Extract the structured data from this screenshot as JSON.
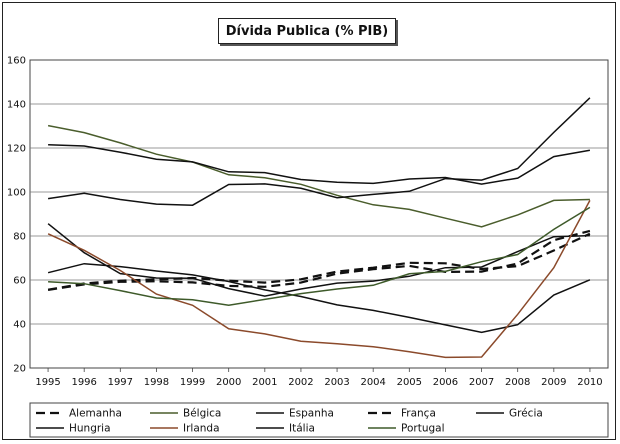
{
  "chart_data": {
    "type": "line",
    "title": "Dívida Publica (% PIB)",
    "xlabel": "",
    "ylabel": "",
    "x": [
      "1995",
      "1996",
      "1997",
      "1998",
      "1999",
      "2000",
      "2001",
      "2002",
      "2003",
      "2004",
      "2005",
      "2006",
      "2007",
      "2008",
      "2009",
      "2010"
    ],
    "ylim": [
      20,
      160
    ],
    "yticks": [
      20,
      40,
      60,
      80,
      100,
      120,
      140,
      160
    ],
    "grid": true,
    "legend_position": "bottom",
    "series": [
      {
        "name": "Alemanha",
        "color": "#111111",
        "dash": "dashed",
        "values": [
          55.6,
          58.4,
          59.7,
          60.3,
          60.9,
          59.7,
          58.8,
          60.3,
          63.8,
          65.6,
          67.8,
          67.6,
          65.0,
          66.3,
          73.4,
          81.0
        ]
      },
      {
        "name": "Bélgica",
        "color": "#4a5d2c",
        "dash": "solid",
        "values": [
          130.2,
          127.0,
          122.3,
          117.2,
          113.6,
          107.8,
          106.5,
          103.5,
          98.5,
          94.2,
          92.1,
          88.1,
          84.2,
          89.6,
          96.2,
          96.6
        ]
      },
      {
        "name": "Espanha",
        "color": "#111111",
        "dash": "solid",
        "values": [
          63.3,
          67.4,
          66.1,
          64.1,
          62.3,
          59.3,
          55.5,
          52.5,
          48.7,
          46.2,
          43.0,
          39.6,
          36.2,
          39.7,
          53.2,
          60.1
        ]
      },
      {
        "name": "França",
        "color": "#111111",
        "dash": "dashed",
        "values": [
          55.5,
          58.0,
          59.2,
          59.4,
          58.9,
          57.3,
          56.9,
          58.8,
          62.9,
          64.9,
          66.4,
          63.7,
          63.8,
          67.5,
          78.1,
          82.3
        ]
      },
      {
        "name": "Grécia",
        "color": "#111111",
        "dash": "solid",
        "values": [
          97.0,
          99.4,
          96.6,
          94.5,
          94.0,
          103.4,
          103.7,
          101.7,
          97.4,
          98.9,
          100.3,
          106.1,
          105.4,
          110.7,
          127.1,
          142.8
        ]
      },
      {
        "name": "Hungria",
        "color": "#111111",
        "dash": "solid",
        "values": [
          85.6,
          72.4,
          62.9,
          60.9,
          60.8,
          56.1,
          52.7,
          55.9,
          58.6,
          59.5,
          61.7,
          65.6,
          65.9,
          72.9,
          79.7,
          80.2
        ]
      },
      {
        "name": "Irlanda",
        "color": "#8b4a2b",
        "dash": "solid",
        "values": [
          81.0,
          73.5,
          64.3,
          53.6,
          48.5,
          37.8,
          35.5,
          32.2,
          31.0,
          29.7,
          27.4,
          24.8,
          25.0,
          44.4,
          65.6,
          96.2
        ]
      },
      {
        "name": "Itália",
        "color": "#111111",
        "dash": "solid",
        "values": [
          121.5,
          120.9,
          118.1,
          114.9,
          113.7,
          109.2,
          108.8,
          105.7,
          104.4,
          103.9,
          105.9,
          106.6,
          103.6,
          106.3,
          116.1,
          119.0
        ]
      },
      {
        "name": "Portugal",
        "color": "#3e5a2a",
        "dash": "solid",
        "values": [
          59.2,
          58.3,
          55.2,
          51.8,
          51.0,
          48.5,
          51.2,
          53.8,
          55.9,
          57.6,
          62.8,
          63.9,
          68.3,
          71.6,
          83.0,
          93.0
        ]
      }
    ]
  }
}
